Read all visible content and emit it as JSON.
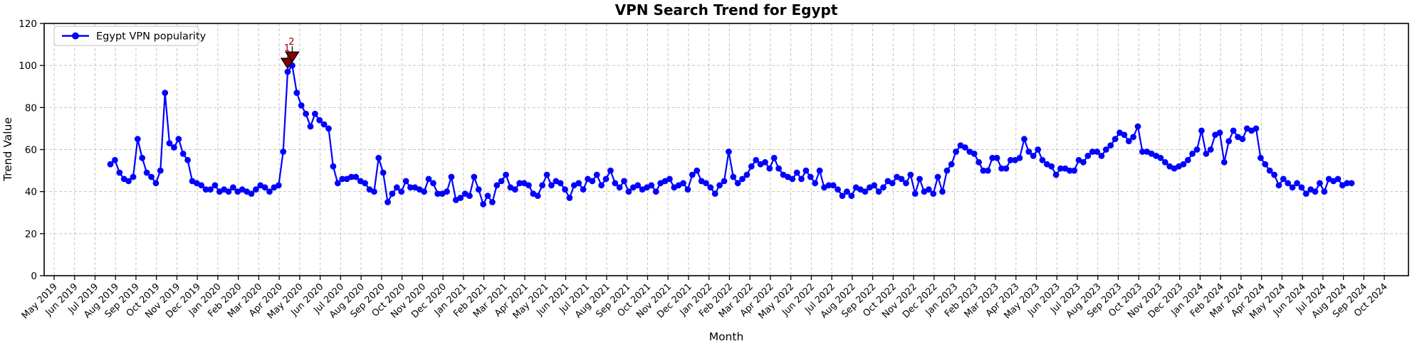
{
  "chart_data": {
    "type": "line",
    "title": "VPN Search Trend for Egypt",
    "xlabel": "Month",
    "ylabel": "Trend Value",
    "legend": {
      "label": "Egypt VPN popularity",
      "position": "upper-left"
    },
    "line_color": "#0000ff",
    "marker": "circle",
    "grid": true,
    "grid_color": "#c4c4c4",
    "ylim": [
      0,
      120
    ],
    "yticks": [
      0,
      20,
      40,
      60,
      80,
      100,
      120
    ],
    "x_tick_labels": [
      "May 2019",
      "Jun 2019",
      "Jul 2019",
      "Aug 2019",
      "Sep 2019",
      "Oct 2019",
      "Nov 2019",
      "Dec 2019",
      "Jan 2020",
      "Feb 2020",
      "Mar 2020",
      "Apr 2020",
      "May 2020",
      "Jun 2020",
      "Jul 2020",
      "Aug 2020",
      "Sep 2020",
      "Oct 2020",
      "Nov 2020",
      "Dec 2020",
      "Jan 2021",
      "Feb 2021",
      "Mar 2021",
      "Apr 2021",
      "May 2021",
      "Jun 2021",
      "Jul 2021",
      "Aug 2021",
      "Sep 2021",
      "Oct 2021",
      "Nov 2021",
      "Dec 2021",
      "Jan 2022",
      "Feb 2022",
      "Mar 2022",
      "Apr 2022",
      "May 2022",
      "Jun 2022",
      "Jul 2022",
      "Aug 2022",
      "Sep 2022",
      "Oct 2022",
      "Nov 2022",
      "Dec 2022",
      "Jan 2023",
      "Feb 2023",
      "Mar 2023",
      "Apr 2023",
      "May 2023",
      "Jun 2023",
      "Jul 2023",
      "Aug 2023",
      "Sep 2023",
      "Oct 2023",
      "Nov 2023",
      "Dec 2023",
      "Jan 2024",
      "Feb 2024",
      "Mar 2024",
      "Apr 2024",
      "May 2024",
      "Jun 2024",
      "Jul 2024",
      "Aug 2024",
      "Sep 2024",
      "Oct 2024"
    ],
    "frequency": "weekly",
    "x_start_month_offset": 2.75,
    "x_end_month_offset": 63.4,
    "values": [
      53,
      55,
      49,
      46,
      45,
      47,
      65,
      56,
      49,
      47,
      44,
      50,
      87,
      63,
      61,
      65,
      58,
      55,
      45,
      44,
      43,
      41,
      41,
      43,
      40,
      41,
      40,
      42,
      40,
      41,
      40,
      39,
      41,
      43,
      42,
      40,
      42,
      43,
      59,
      97,
      100,
      87,
      81,
      77,
      71,
      77,
      74,
      72,
      70,
      52,
      44,
      46,
      46,
      47,
      47,
      45,
      44,
      41,
      40,
      56,
      49,
      35,
      39,
      42,
      40,
      45,
      42,
      42,
      41,
      40,
      46,
      44,
      39,
      39,
      40,
      47,
      36,
      37,
      39,
      38,
      47,
      41,
      34,
      38,
      35,
      43,
      45,
      48,
      42,
      41,
      44,
      44,
      43,
      39,
      38,
      43,
      48,
      43,
      45,
      44,
      41,
      37,
      43,
      44,
      41,
      46,
      45,
      48,
      43,
      46,
      50,
      44,
      42,
      45,
      40,
      42,
      43,
      41,
      42,
      43,
      40,
      44,
      45,
      46,
      42,
      43,
      44,
      41,
      48,
      50,
      45,
      44,
      42,
      39,
      43,
      45,
      59,
      47,
      44,
      46,
      48,
      52,
      55,
      53,
      54,
      51,
      56,
      51,
      48,
      47,
      46,
      49,
      46,
      50,
      47,
      44,
      50,
      42,
      43,
      43,
      41,
      38,
      40,
      38,
      42,
      41,
      40,
      42,
      43,
      40,
      42,
      45,
      44,
      47,
      46,
      44,
      48,
      39,
      46,
      40,
      41,
      39,
      47,
      40,
      50,
      53,
      59,
      62,
      61,
      59,
      58,
      54,
      50,
      50,
      56,
      56,
      51,
      51,
      55,
      55,
      56,
      65,
      59,
      57,
      60,
      55,
      53,
      52,
      48,
      51,
      51,
      50,
      50,
      55,
      54,
      57,
      59,
      59,
      57,
      60,
      62,
      65,
      68,
      67,
      64,
      66,
      71,
      59,
      59,
      58,
      57,
      56,
      54,
      52,
      51,
      52,
      53,
      55,
      58,
      60,
      69,
      58,
      60,
      67,
      68,
      54,
      64,
      69,
      66,
      65,
      70,
      69,
      70,
      56,
      53,
      50,
      48,
      43,
      46,
      44,
      42,
      44,
      42,
      39,
      41,
      40,
      44,
      40,
      46,
      45,
      46,
      43,
      44,
      44
    ],
    "annotations": [
      {
        "label": "1",
        "point_index": 39,
        "marker": "triangle-down",
        "color": "#8b0000"
      },
      {
        "label": "2",
        "point_index": 40,
        "marker": "triangle-down",
        "color": "#8b0000"
      }
    ]
  }
}
